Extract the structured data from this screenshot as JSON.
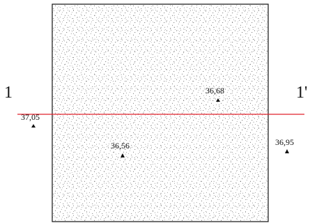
{
  "section_line": {
    "start_label": "1",
    "end_label": "1'",
    "color": "#e0202a"
  },
  "elevations": [
    {
      "id": "outside-left",
      "value": "37,05"
    },
    {
      "id": "inside-center-left",
      "value": "36,56"
    },
    {
      "id": "inside-upper-right",
      "value": "36,68"
    },
    {
      "id": "outside-right",
      "value": "36,95"
    }
  ],
  "plot": {
    "fill": "stipple",
    "outline_color": "#111111"
  }
}
